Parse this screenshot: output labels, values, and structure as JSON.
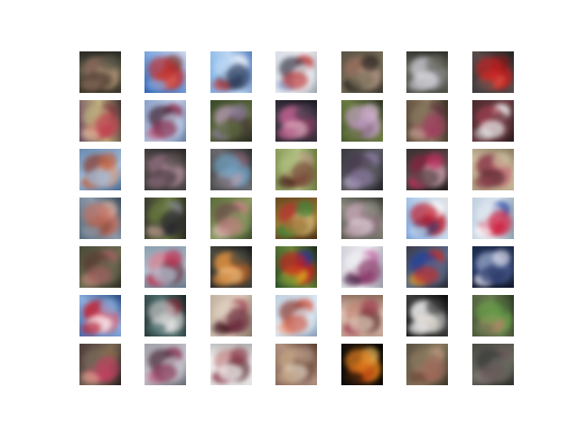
{
  "figure": {
    "rows": 7,
    "cols": 7,
    "tiles": [
      {
        "bg": [
          "#3a3428",
          "#5d5a4a",
          "#2a2a24"
        ],
        "fg": [
          "#8a6a5a",
          "#c0a080",
          "#4a3a30"
        ]
      },
      {
        "bg": [
          "#2f5fb0",
          "#7aa6e0",
          "#d0d8f0"
        ],
        "fg": [
          "#c03030",
          "#e06050",
          "#803020"
        ]
      },
      {
        "bg": [
          "#7ab0e8",
          "#bcd6f2",
          "#5a80c0"
        ],
        "fg": [
          "#2a3a5a",
          "#ffffff",
          "#c04040"
        ]
      },
      {
        "bg": [
          "#d8dde6",
          "#f0f2f6",
          "#a0a6b0"
        ],
        "fg": [
          "#c04040",
          "#7a90c0",
          "#3a3a4a"
        ]
      },
      {
        "bg": [
          "#5a5244",
          "#7a705a",
          "#3a342c"
        ],
        "fg": [
          "#2a2420",
          "#a07060",
          "#c0a090"
        ]
      },
      {
        "bg": [
          "#4a4a44",
          "#6a6a60",
          "#2e2e2a"
        ],
        "fg": [
          "#c0c0c8",
          "#8a8a90",
          "#e0e0e6"
        ]
      },
      {
        "bg": [
          "#3a3a3a",
          "#5a4a4a",
          "#222222"
        ],
        "fg": [
          "#c02020",
          "#e05040",
          "#801818"
        ]
      },
      {
        "bg": [
          "#6a4a60",
          "#c0b080",
          "#403030"
        ],
        "fg": [
          "#c04050",
          "#803040",
          "#e0c0a0"
        ]
      },
      {
        "bg": [
          "#8aa0c8",
          "#c0d0e8",
          "#6a80a8"
        ],
        "fg": [
          "#8a3050",
          "#c06080",
          "#402030"
        ]
      },
      {
        "bg": [
          "#3a4a2a",
          "#5a6a3a",
          "#2a2a20"
        ],
        "fg": [
          "#8a7a9a",
          "#c0a0c0",
          "#4a3a3a"
        ]
      },
      {
        "bg": [
          "#2a2830",
          "#4a4050",
          "#1a1820"
        ],
        "fg": [
          "#c06090",
          "#8a3a60",
          "#e0b0c0"
        ]
      },
      {
        "bg": [
          "#4a5a30",
          "#6a7a40",
          "#2a3020"
        ],
        "fg": [
          "#c0a0c0",
          "#8a6a8a",
          "#e0c0e0"
        ]
      },
      {
        "bg": [
          "#5a4a3a",
          "#8a7a60",
          "#3a2e24"
        ],
        "fg": [
          "#a04060",
          "#603040",
          "#c0a090"
        ]
      },
      {
        "bg": [
          "#4a2a30",
          "#6a3a40",
          "#2a1a1c"
        ],
        "fg": [
          "#f0f0f0",
          "#c0c0c0",
          "#a04050"
        ]
      },
      {
        "bg": [
          "#6a8ab0",
          "#a0c0e0",
          "#4a6a90"
        ],
        "fg": [
          "#c06040",
          "#8a3a2a",
          "#e0a080"
        ]
      },
      {
        "bg": [
          "#3a3a3a",
          "#5a5050",
          "#2a2626"
        ],
        "fg": [
          "#8a6a7a",
          "#c09aaa",
          "#4a3a40"
        ]
      },
      {
        "bg": [
          "#4a4a4a",
          "#6a6a70",
          "#2e2e30"
        ],
        "fg": [
          "#6aa0c0",
          "#c0a0b0",
          "#8a6070"
        ]
      },
      {
        "bg": [
          "#8a9a5a",
          "#b0c080",
          "#6a7a40"
        ],
        "fg": [
          "#7a4a3a",
          "#c09a8a",
          "#4a2a20"
        ]
      },
      {
        "bg": [
          "#3a3a40",
          "#5a5a60",
          "#22222a"
        ],
        "fg": [
          "#8a7aa0",
          "#c0b0d0",
          "#4a3a50"
        ]
      },
      {
        "bg": [
          "#3a3030",
          "#5a4a4a",
          "#221c1c"
        ],
        "fg": [
          "#c03060",
          "#8a2040",
          "#e0b0c0"
        ]
      },
      {
        "bg": [
          "#b0a080",
          "#d0c0a0",
          "#8a7a60"
        ],
        "fg": [
          "#8a3a4a",
          "#c06070",
          "#5a2a30"
        ]
      },
      {
        "bg": [
          "#5a6a7a",
          "#8a9aaa",
          "#3a4a5a"
        ],
        "fg": [
          "#c07060",
          "#8a4a3a",
          "#e0b0a0"
        ]
      },
      {
        "bg": [
          "#3a3a30",
          "#6a7a40",
          "#2a2a20"
        ],
        "fg": [
          "#2a2830",
          "#8a8aa0",
          "#c0a090"
        ]
      },
      {
        "bg": [
          "#5a6a3a",
          "#8a9a60",
          "#3a4a2a"
        ],
        "fg": [
          "#c08080",
          "#e0c0c0",
          "#6a4a4a"
        ]
      },
      {
        "bg": [
          "#6a4a20",
          "#9a7a3a",
          "#4a3014"
        ],
        "fg": [
          "#3a8a3a",
          "#c03030",
          "#e0c080"
        ]
      },
      {
        "bg": [
          "#5a5a50",
          "#8a8a80",
          "#3a3a34"
        ],
        "fg": [
          "#c0a0b0",
          "#8a6a7a",
          "#e0d0d8"
        ]
      },
      {
        "bg": [
          "#7aa0d8",
          "#c0d8f0",
          "#e0e0e0"
        ],
        "fg": [
          "#c02030",
          "#3a3a6a",
          "#ffffff"
        ]
      },
      {
        "bg": [
          "#c0d0e0",
          "#e0e8f0",
          "#8aa0b0"
        ],
        "fg": [
          "#d02040",
          "#2040a0",
          "#ffffff"
        ]
      },
      {
        "bg": [
          "#4a4a3a",
          "#6a6a50",
          "#2e2e24"
        ],
        "fg": [
          "#a06060",
          "#c08a7a",
          "#5a3a30"
        ]
      },
      {
        "bg": [
          "#8aa0b0",
          "#b0c0d0",
          "#6a7a8a"
        ],
        "fg": [
          "#c03050",
          "#e08090",
          "#6a3040"
        ]
      },
      {
        "bg": [
          "#2a2a2a",
          "#4a4a40",
          "#1a1a1a"
        ],
        "fg": [
          "#e09040",
          "#c06020",
          "#f0c080"
        ]
      },
      {
        "bg": [
          "#2a4a2a",
          "#6a8a3a",
          "#1a2a1a"
        ],
        "fg": [
          "#c02020",
          "#e0c020",
          "#3030a0"
        ]
      },
      {
        "bg": [
          "#d0d0d8",
          "#f0f0f4",
          "#9a9aa8"
        ],
        "fg": [
          "#8a3a6a",
          "#c060a0",
          "#4a2a4a"
        ]
      },
      {
        "bg": [
          "#3a3a4a",
          "#5a6a8a",
          "#2a2a30"
        ],
        "fg": [
          "#c03030",
          "#e0a020",
          "#2040a0"
        ]
      },
      {
        "bg": [
          "#1a2a4a",
          "#2a3a6a",
          "#101828"
        ],
        "fg": [
          "#e0e0f0",
          "#a0b0d0",
          "#4a5a8a"
        ]
      },
      {
        "bg": [
          "#4a70b0",
          "#8ab0e0",
          "#2a4a80"
        ],
        "fg": [
          "#c02030",
          "#e06070",
          "#ffffff"
        ]
      },
      {
        "bg": [
          "#2a3a3a",
          "#4a6a6a",
          "#1a2424"
        ],
        "fg": [
          "#c0c0c0",
          "#f0f0f0",
          "#8a2a3a"
        ]
      },
      {
        "bg": [
          "#c0b0a0",
          "#e0d0c0",
          "#8a7a6a"
        ],
        "fg": [
          "#6a2a3a",
          "#a04050",
          "#401a20"
        ]
      },
      {
        "bg": [
          "#c0d0e0",
          "#e0ecf4",
          "#8aa0b8"
        ],
        "fg": [
          "#d06050",
          "#f0a080",
          "#8a3a30"
        ]
      },
      {
        "bg": [
          "#c0a090",
          "#e0c8b8",
          "#8a6a5a"
        ],
        "fg": [
          "#a04050",
          "#c08070",
          "#5a2a2a"
        ]
      },
      {
        "bg": [
          "#1a1a1a",
          "#3a3a3a",
          "#0a0a0a"
        ],
        "fg": [
          "#f0f0f0",
          "#c0c0c0",
          "#e8e0d8"
        ]
      },
      {
        "bg": [
          "#4a5a3a",
          "#6a7a50",
          "#2e3a24"
        ],
        "fg": [
          "#6aa04a",
          "#c08070",
          "#4a6a3a"
        ]
      },
      {
        "bg": [
          "#4a3a3a",
          "#7a6a5a",
          "#2a2020"
        ],
        "fg": [
          "#c04060",
          "#8a6a4a",
          "#e0a090"
        ]
      },
      {
        "bg": [
          "#a0a0a8",
          "#c8c8d0",
          "#6a6a74"
        ],
        "fg": [
          "#8a3a5a",
          "#c06a8a",
          "#4a2a3a"
        ]
      },
      {
        "bg": [
          "#e0e0e0",
          "#f4f4f4",
          "#b0b0b0"
        ],
        "fg": [
          "#8a3a4a",
          "#c08080",
          "#5a2a30"
        ]
      },
      {
        "bg": [
          "#8a6a5a",
          "#b09080",
          "#5a4030"
        ],
        "fg": [
          "#c0a080",
          "#6a4a3a",
          "#e0d0c0"
        ]
      },
      {
        "bg": [
          "#0a0a0a",
          "#2a1a0a",
          "#000000"
        ],
        "fg": [
          "#e08020",
          "#c04010",
          "#f0c060"
        ]
      },
      {
        "bg": [
          "#5a5040",
          "#8a7a60",
          "#3a3428"
        ],
        "fg": [
          "#a06a5a",
          "#c09a80",
          "#6a4a3a"
        ]
      },
      {
        "bg": [
          "#4a4a44",
          "#6a6a60",
          "#2e2e2a"
        ],
        "fg": [
          "#6a5a5a",
          "#8a7a7a",
          "#3a3a3a"
        ]
      }
    ]
  }
}
